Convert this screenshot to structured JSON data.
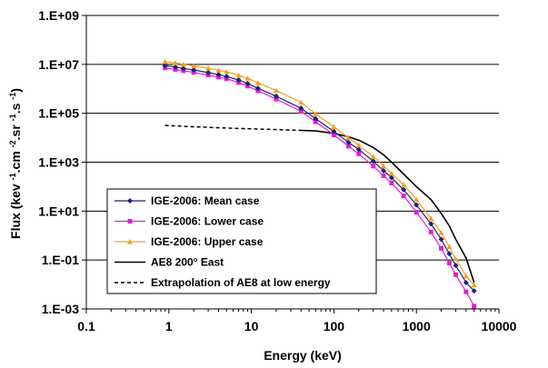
{
  "chart_data": {
    "type": "line",
    "xlabel": "Energy  (keV)",
    "ylabel": "Flux (kev -1.cm -2.sr -1.s -1)",
    "x_scale": "log",
    "y_scale": "log",
    "xlim": [
      0.1,
      10000
    ],
    "ylim": [
      0.001,
      1000000000
    ],
    "x_ticks": [
      "0.1",
      "1",
      "10",
      "100",
      "1000",
      "10000"
    ],
    "y_ticks": [
      "1.E-03",
      "1.E-01",
      "1.E+01",
      "1.E+03",
      "1.E+05",
      "1.E+07",
      "1.E+09"
    ],
    "grid": "horizontal major gridlines",
    "legend_position": "lower-left",
    "series": [
      {
        "name": "IGE-2006: Mean case",
        "color": "#1f1f7a",
        "marker": "diamond",
        "line_style": "solid",
        "points": [
          [
            0.9,
            9000000
          ],
          [
            1.2,
            7800000
          ],
          [
            1.5,
            6800000
          ],
          [
            2.0,
            5900000
          ],
          [
            3.0,
            4600000
          ],
          [
            4.0,
            3800000
          ],
          [
            5.0,
            3200000
          ],
          [
            7.0,
            2300000
          ],
          [
            9.0,
            1650000
          ],
          [
            12,
            1050000
          ],
          [
            20,
            500000
          ],
          [
            40,
            160000
          ],
          [
            60,
            60000
          ],
          [
            100,
            18000
          ],
          [
            150,
            6500
          ],
          [
            200,
            3300
          ],
          [
            300,
            1100
          ],
          [
            400,
            450
          ],
          [
            500,
            230
          ],
          [
            700,
            75
          ],
          [
            1000,
            18
          ],
          [
            1500,
            3
          ],
          [
            2000,
            0.7
          ],
          [
            2500,
            0.18
          ],
          [
            3000,
            0.06
          ],
          [
            4000,
            0.012
          ],
          [
            5000,
            0.0055
          ]
        ]
      },
      {
        "name": "IGE-2006: Lower case",
        "color": "#e020d0",
        "marker": "square",
        "line_style": "solid",
        "points": [
          [
            0.9,
            7200000
          ],
          [
            1.2,
            6200000
          ],
          [
            1.5,
            5500000
          ],
          [
            2.0,
            4700000
          ],
          [
            3.0,
            3700000
          ],
          [
            4.0,
            3000000
          ],
          [
            5.0,
            2600000
          ],
          [
            7.0,
            1800000
          ],
          [
            9.0,
            1300000
          ],
          [
            12,
            830000
          ],
          [
            20,
            380000
          ],
          [
            40,
            120000
          ],
          [
            60,
            45000
          ],
          [
            100,
            13000
          ],
          [
            150,
            4500
          ],
          [
            200,
            2200
          ],
          [
            300,
            700
          ],
          [
            400,
            280
          ],
          [
            500,
            140
          ],
          [
            700,
            42
          ],
          [
            1000,
            9
          ],
          [
            1500,
            1.4
          ],
          [
            2000,
            0.3
          ],
          [
            2500,
            0.075
          ],
          [
            3000,
            0.025
          ],
          [
            4000,
            0.005
          ],
          [
            5000,
            0.0013
          ]
        ]
      },
      {
        "name": "IGE-2006: Upper case",
        "color": "#f0a020",
        "marker": "triangle",
        "line_style": "solid",
        "points": [
          [
            0.9,
            13000000
          ],
          [
            1.2,
            11500000
          ],
          [
            1.5,
            10000000
          ],
          [
            2.0,
            8700000
          ],
          [
            3.0,
            7000000
          ],
          [
            4.0,
            5800000
          ],
          [
            5.0,
            5000000
          ],
          [
            7.0,
            3600000
          ],
          [
            9.0,
            2700000
          ],
          [
            12,
            1750000
          ],
          [
            20,
            850000
          ],
          [
            40,
            280000
          ],
          [
            60,
            95000
          ],
          [
            100,
            28000
          ],
          [
            150,
            10000
          ],
          [
            200,
            5000
          ],
          [
            300,
            1700
          ],
          [
            400,
            700
          ],
          [
            500,
            350
          ],
          [
            700,
            120
          ],
          [
            1000,
            30
          ],
          [
            1500,
            5
          ],
          [
            2000,
            1.3
          ],
          [
            2500,
            0.35
          ],
          [
            3000,
            0.11
          ],
          [
            4000,
            0.022
          ],
          [
            5000,
            0.0095
          ]
        ]
      },
      {
        "name": "AE8 200° East",
        "color": "#000000",
        "marker": "none",
        "line_style": "solid",
        "points": [
          [
            40,
            20000
          ],
          [
            60,
            19000
          ],
          [
            100,
            15000
          ],
          [
            150,
            11000
          ],
          [
            200,
            8000
          ],
          [
            300,
            4000
          ],
          [
            400,
            2000
          ],
          [
            500,
            1000
          ],
          [
            700,
            330
          ],
          [
            1000,
            100
          ],
          [
            1500,
            30
          ],
          [
            2000,
            8
          ],
          [
            2500,
            2.5
          ],
          [
            3000,
            0.7
          ],
          [
            4000,
            0.12
          ],
          [
            5000,
            0.012
          ]
        ]
      },
      {
        "name": "Extrapolation of AE8 at low energy",
        "color": "#000000",
        "marker": "none",
        "line_style": "dashed",
        "points": [
          [
            0.9,
            32000
          ],
          [
            2,
            28000
          ],
          [
            5,
            25000
          ],
          [
            10,
            23000
          ],
          [
            20,
            21500
          ],
          [
            40,
            20000
          ]
        ]
      }
    ]
  }
}
